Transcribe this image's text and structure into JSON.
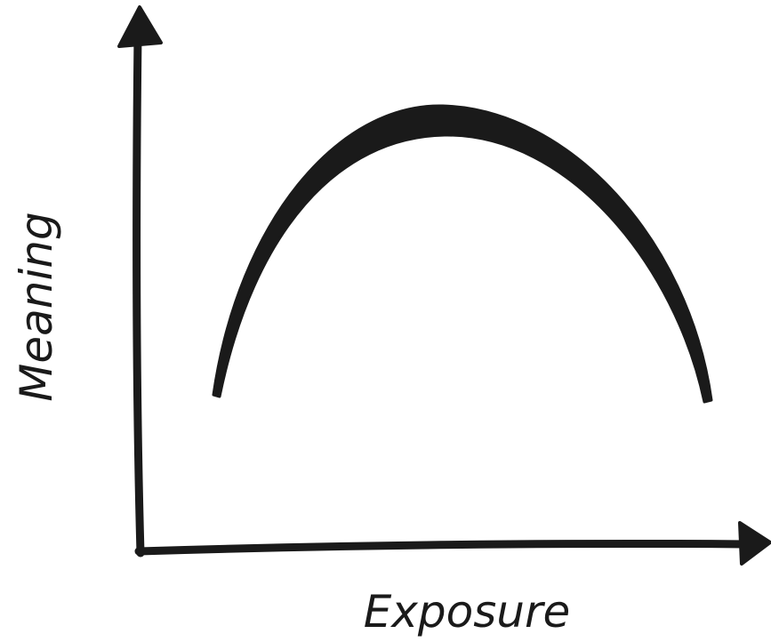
{
  "axes": {
    "x_label": "Exposure",
    "y_label": "Meaning"
  }
}
